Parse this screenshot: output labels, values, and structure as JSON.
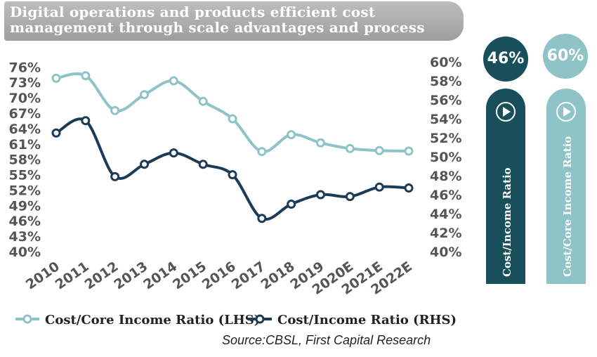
{
  "title": "Digital operations and products efficient cost management through scale advantages and process",
  "source": "Source:CBSL, First Capital Research",
  "colors": {
    "lhs": "#8ec3c8",
    "rhs": "#1b3b56",
    "badge_dark": "#17505a",
    "badge_light": "#8ec3c8",
    "axis_text": "#555555"
  },
  "badges": [
    {
      "value": "46%",
      "label": "Cost/Income Ratio",
      "icon": "play-icon"
    },
    {
      "value": "60%",
      "label": "Cost/Core Income Ratio",
      "icon": "play-icon"
    }
  ],
  "chart_data": {
    "type": "line",
    "categories": [
      "2010",
      "2011",
      "2012",
      "2013",
      "2014",
      "2015",
      "2016",
      "2017",
      "2018",
      "2019",
      "2020E",
      "2021E",
      "2022E"
    ],
    "series": [
      {
        "name": "Cost/Core Income Ratio (LHS)",
        "axis": "left",
        "values": [
          73.8,
          74.3,
          67.5,
          70.6,
          73.3,
          69.3,
          65.9,
          59.5,
          62.8,
          61.2,
          60.1,
          59.7,
          59.6
        ]
      },
      {
        "name": "Cost/Income Ratio (RHS)",
        "axis": "right",
        "values": [
          52.5,
          53.8,
          47.9,
          49.2,
          50.4,
          49.2,
          48.1,
          43.5,
          45.0,
          46.0,
          45.8,
          46.8,
          46.7
        ]
      }
    ],
    "left_axis": {
      "ylim": [
        40,
        77
      ],
      "ticks": [
        "40%",
        "43%",
        "46%",
        "49%",
        "52%",
        "55%",
        "58%",
        "61%",
        "64%",
        "67%",
        "70%",
        "73%",
        "76%"
      ],
      "tick_values": [
        40,
        43,
        46,
        49,
        52,
        55,
        58,
        61,
        64,
        67,
        70,
        73,
        76
      ]
    },
    "right_axis": {
      "ylim": [
        40,
        60
      ],
      "ticks": [
        "40%",
        "42%",
        "44%",
        "46%",
        "48%",
        "50%",
        "52%",
        "54%",
        "56%",
        "58%",
        "60%"
      ],
      "tick_values": [
        40,
        42,
        44,
        46,
        48,
        50,
        52,
        54,
        56,
        58,
        60
      ]
    },
    "grid": false,
    "legend_position": "bottom-left"
  }
}
